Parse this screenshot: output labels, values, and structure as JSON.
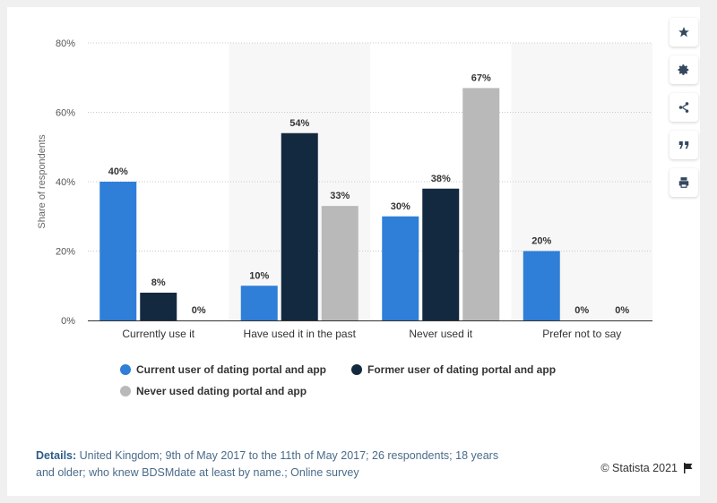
{
  "chart_data": {
    "type": "bar",
    "categories": [
      "Currently use it",
      "Have used it in the past",
      "Never used it",
      "Prefer not to say"
    ],
    "series": [
      {
        "name": "Current user of dating portal and app",
        "values": [
          40,
          10,
          30,
          20
        ],
        "labels": [
          "40%",
          "10%",
          "30%",
          "20%"
        ],
        "color": "#2f7ed8"
      },
      {
        "name": "Former user of dating portal and app",
        "values": [
          8,
          54,
          38,
          0
        ],
        "labels": [
          "8%",
          "54%",
          "38%",
          "0%"
        ],
        "color": "#132940"
      },
      {
        "name": "Never used dating portal and app",
        "values": [
          0,
          33,
          67,
          0
        ],
        "labels": [
          "0%",
          "33%",
          "67%",
          "0%"
        ],
        "color": "#b9b9b9"
      }
    ],
    "ylabel": "Share of respondents",
    "ylim": [
      0,
      80
    ],
    "yticks": [
      "0%",
      "20%",
      "40%",
      "60%",
      "80%"
    ],
    "grid": true,
    "legend_position": "bottom"
  },
  "details_label": "Details:",
  "details_text": "United Kingdom; 9th of May 2017 to the 11th of May 2017; 26 respondents; 18 years and older; who knew BDSMdate at least by name.; Online survey",
  "copyright": "© Statista 2021",
  "toolbar": {
    "icons": [
      "star-icon",
      "gear-icon",
      "share-icon",
      "quote-icon",
      "print-icon"
    ]
  }
}
